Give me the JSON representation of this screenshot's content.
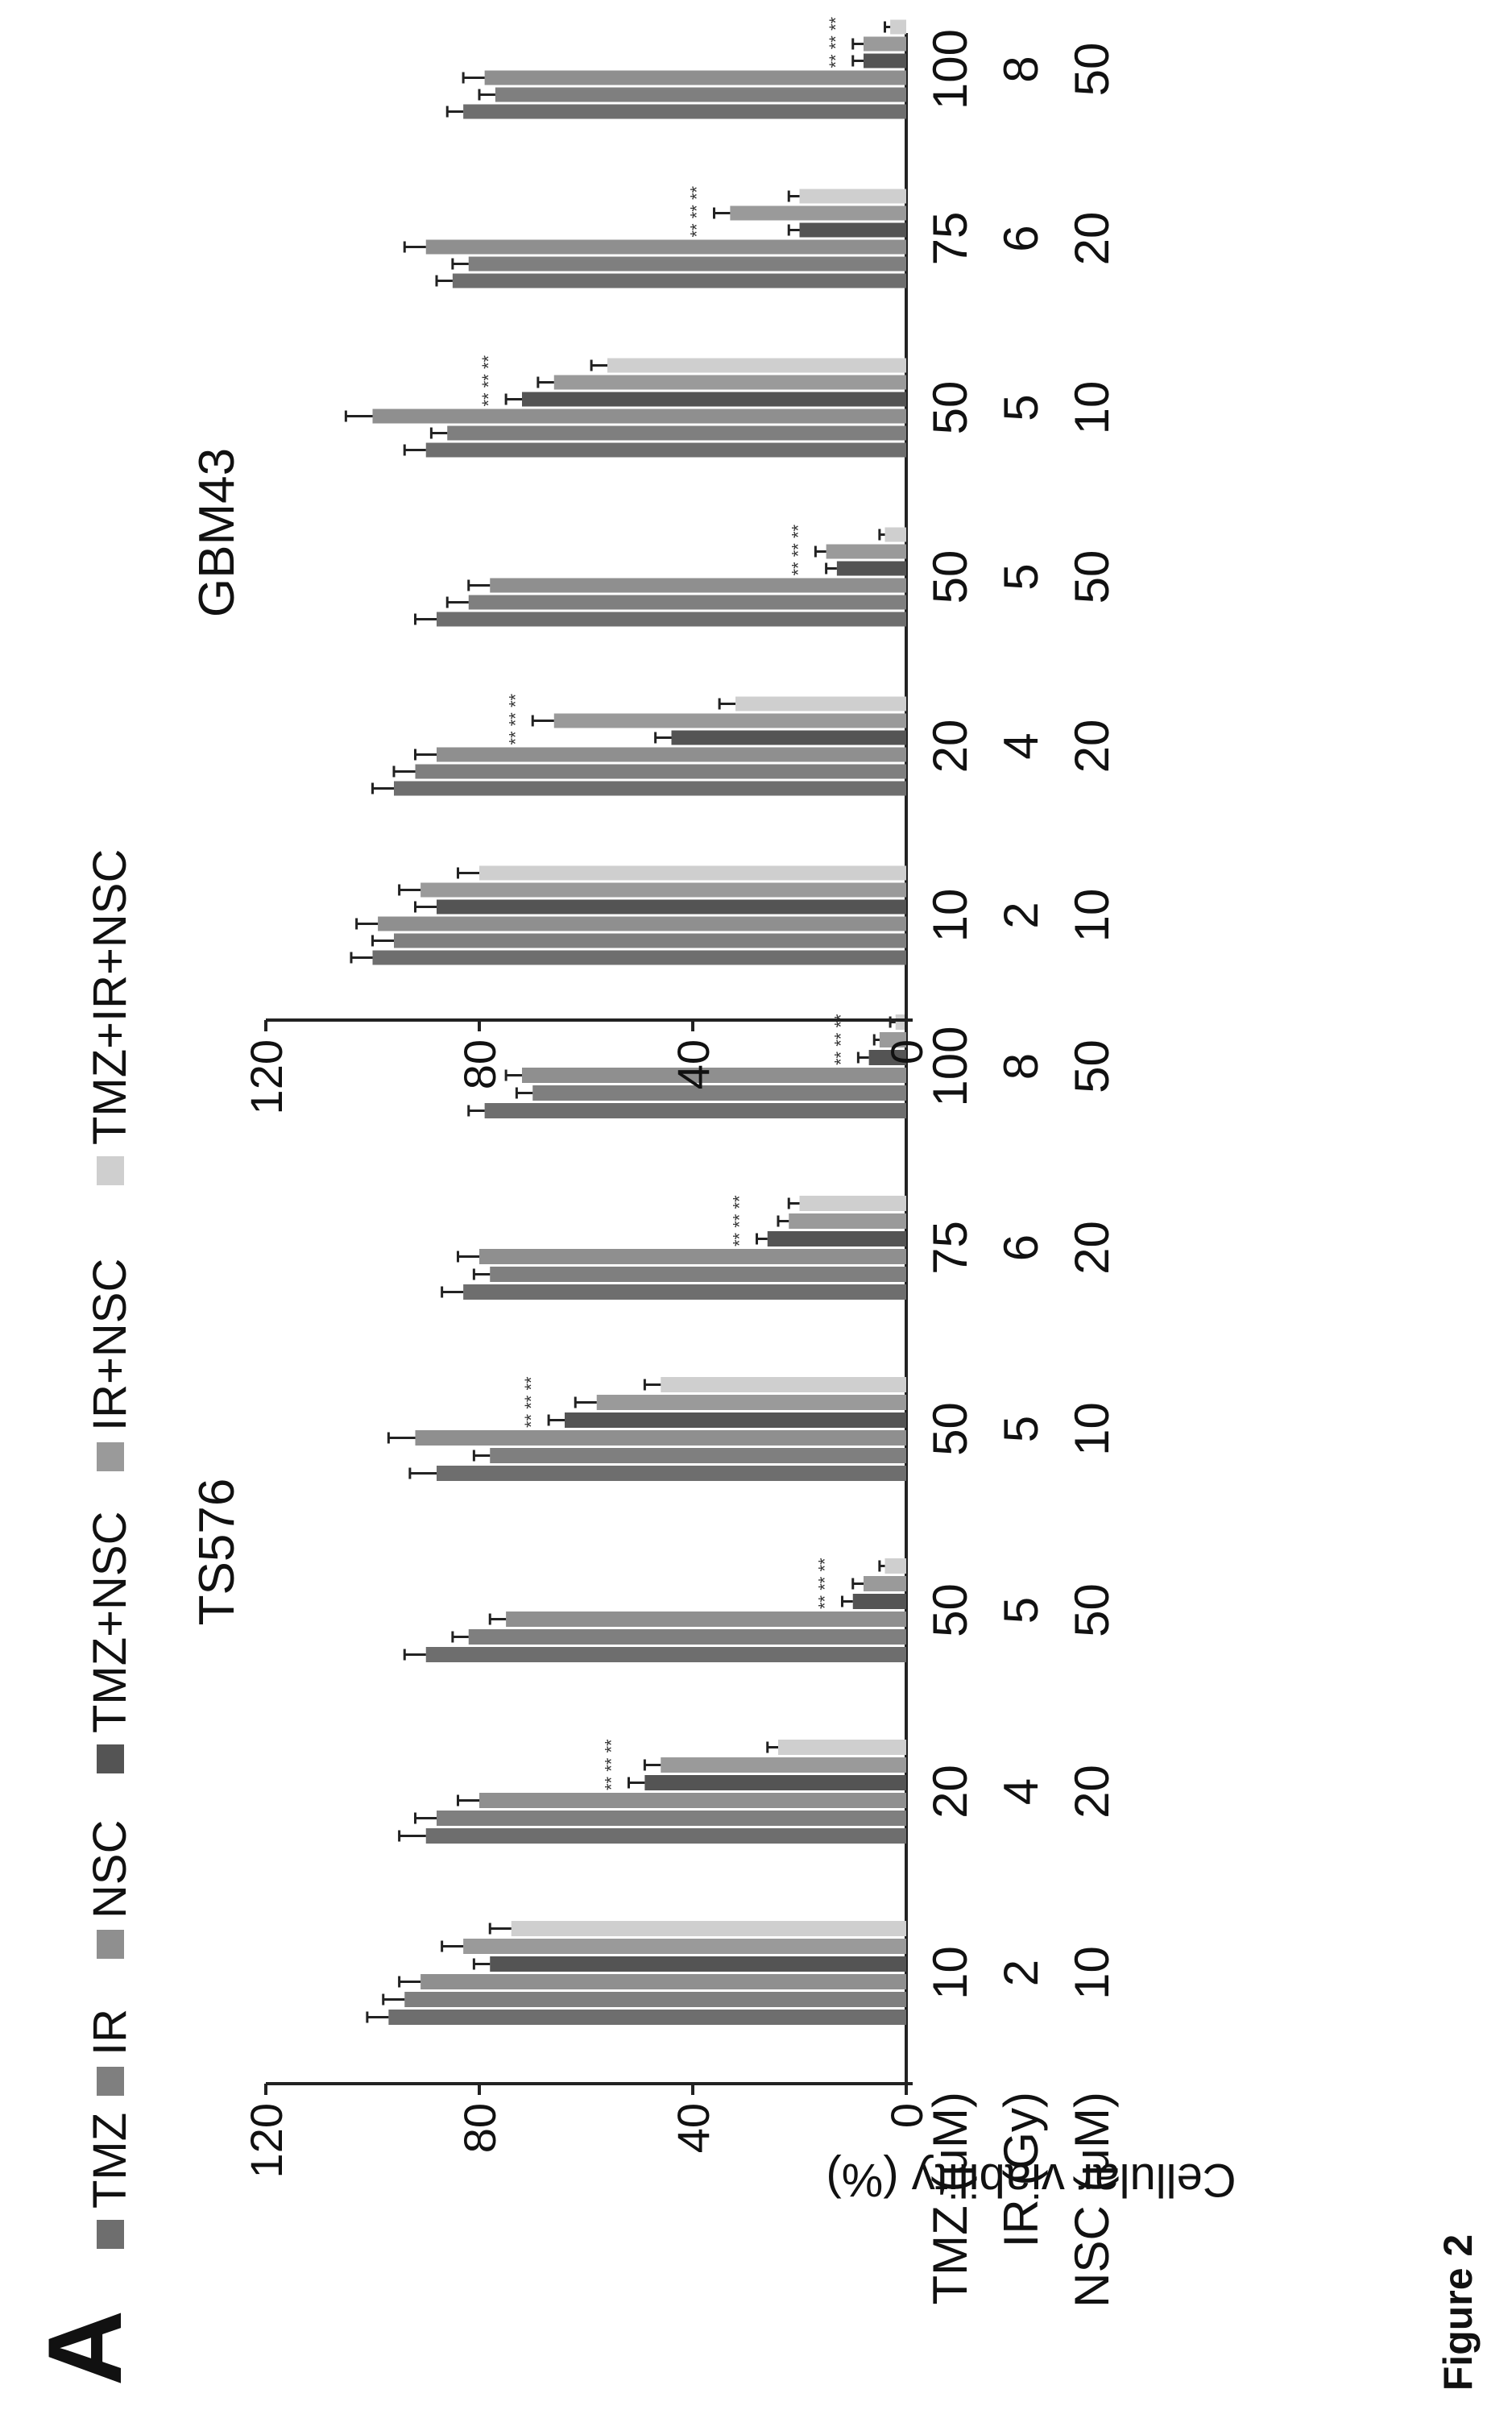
{
  "panel_label": "A",
  "figure_caption": "Figure 2",
  "chart_data": {
    "type": "bar",
    "ylabel": "Cellular viability (%)",
    "ylim": [
      0,
      120
    ],
    "yticks": [
      0,
      40,
      80,
      120
    ],
    "row_labels": [
      "TMZ (μM)",
      "IR (Gy)",
      "NSC (μM)"
    ],
    "legend": {
      "placement": "top",
      "entries": [
        {
          "name": "TMZ",
          "color": "#6e6e6e"
        },
        {
          "name": "IR",
          "color": "#7f7f7f"
        },
        {
          "name": "NSC",
          "color": "#8f8f8f"
        },
        {
          "name": "TMZ+NSC",
          "color": "#545454"
        },
        {
          "name": "IR+NSC",
          "color": "#9a9a9a"
        },
        {
          "name": "TMZ+IR+NSC",
          "color": "#cfcfcf"
        }
      ]
    },
    "panels": [
      {
        "title": "TS576",
        "categories": [
          {
            "tmz": "10",
            "ir": "2",
            "nsc": "10"
          },
          {
            "tmz": "20",
            "ir": "4",
            "nsc": "20"
          },
          {
            "tmz": "50",
            "ir": "5",
            "nsc": "50"
          },
          {
            "tmz": "50",
            "ir": "5",
            "nsc": "10"
          },
          {
            "tmz": "75",
            "ir": "6",
            "nsc": "20"
          },
          {
            "tmz": "100",
            "ir": "8",
            "nsc": "50"
          }
        ],
        "series": [
          {
            "name": "TMZ",
            "values": [
              97,
              90,
              90,
              88,
              83,
              79
            ],
            "errors": [
              4,
              5,
              4,
              5,
              4,
              3
            ]
          },
          {
            "name": "IR",
            "values": [
              94,
              88,
              82,
              78,
              78,
              70
            ],
            "errors": [
              4,
              4,
              3,
              3,
              3,
              3
            ]
          },
          {
            "name": "NSC",
            "values": [
              91,
              80,
              75,
              92,
              80,
              72
            ],
            "errors": [
              4,
              4,
              3,
              5,
              4,
              3
            ]
          },
          {
            "name": "TMZ+NSC",
            "values": [
              78,
              49,
              10,
              64,
              26,
              7
            ],
            "errors": [
              3,
              3,
              2,
              3,
              2,
              2
            ]
          },
          {
            "name": "IR+NSC",
            "values": [
              83,
              46,
              8,
              58,
              22,
              5
            ],
            "errors": [
              4,
              3,
              2,
              4,
              2,
              1
            ]
          },
          {
            "name": "TMZ+IR+NSC",
            "values": [
              74,
              24,
              4,
              46,
              20,
              2
            ],
            "errors": [
              4,
              2,
              1,
              3,
              2,
              1
            ]
          }
        ],
        "significance": [
          "",
          "** ** **",
          "** ** **",
          "** ** **",
          "** ** **",
          "** ** **"
        ]
      },
      {
        "title": "GBM43",
        "categories": [
          {
            "tmz": "10",
            "ir": "2",
            "nsc": "10"
          },
          {
            "tmz": "20",
            "ir": "4",
            "nsc": "20"
          },
          {
            "tmz": "50",
            "ir": "5",
            "nsc": "50"
          },
          {
            "tmz": "50",
            "ir": "5",
            "nsc": "10"
          },
          {
            "tmz": "75",
            "ir": "6",
            "nsc": "20"
          },
          {
            "tmz": "100",
            "ir": "8",
            "nsc": "50"
          }
        ],
        "series": [
          {
            "name": "TMZ",
            "values": [
              100,
              96,
              88,
              90,
              85,
              83
            ],
            "errors": [
              4,
              4,
              4,
              4,
              3,
              3
            ]
          },
          {
            "name": "IR",
            "values": [
              96,
              92,
              82,
              86,
              82,
              77
            ],
            "errors": [
              4,
              4,
              4,
              3,
              3,
              3
            ]
          },
          {
            "name": "NSC",
            "values": [
              99,
              88,
              78,
              100,
              90,
              79
            ],
            "errors": [
              4,
              4,
              4,
              5,
              4,
              4
            ]
          },
          {
            "name": "TMZ+NSC",
            "values": [
              88,
              44,
              13,
              72,
              20,
              8
            ],
            "errors": [
              4,
              3,
              2,
              3,
              2,
              2
            ]
          },
          {
            "name": "IR+NSC",
            "values": [
              91,
              66,
              15,
              66,
              33,
              8
            ],
            "errors": [
              4,
              4,
              2,
              3,
              3,
              2
            ]
          },
          {
            "name": "TMZ+IR+NSC",
            "values": [
              80,
              32,
              4,
              56,
              20,
              3
            ],
            "errors": [
              4,
              3,
              1,
              3,
              2,
              1
            ]
          }
        ],
        "significance": [
          "",
          "** ** **",
          "** ** **",
          "** ** **",
          "** ** **",
          "** ** **"
        ]
      }
    ]
  }
}
